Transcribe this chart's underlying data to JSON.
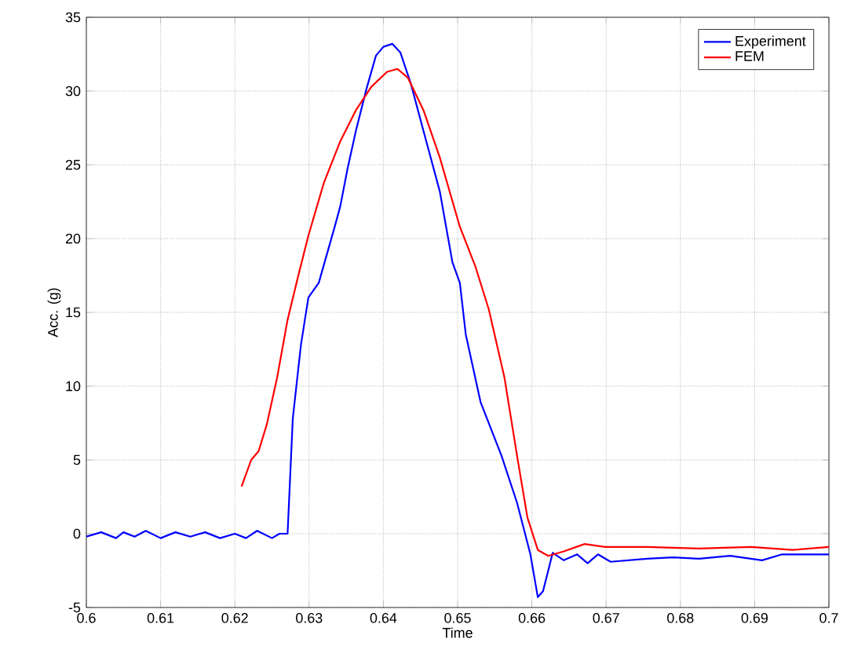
{
  "chart_data": {
    "type": "line",
    "xlabel": "Time",
    "ylabel": "Acc. (g)",
    "xlim": [
      0.6,
      0.7
    ],
    "ylim": [
      -5,
      35
    ],
    "xticks": [
      0.6,
      0.61,
      0.62,
      0.63,
      0.64,
      0.65,
      0.66,
      0.67,
      0.68,
      0.69,
      0.7
    ],
    "yticks": [
      -5,
      0,
      5,
      10,
      15,
      20,
      25,
      30,
      35
    ],
    "grid": true,
    "legend": "top right",
    "marker": "none",
    "line_style": "solid",
    "series": [
      {
        "name": "Experiment",
        "color": "#0000ff",
        "x": [
          0.6,
          0.602,
          0.604,
          0.605,
          0.6065,
          0.608,
          0.61,
          0.612,
          0.614,
          0.616,
          0.618,
          0.62,
          0.6215,
          0.623,
          0.625,
          0.626,
          0.6271,
          0.6278,
          0.6289,
          0.6299,
          0.6313,
          0.6335,
          0.6342,
          0.6352,
          0.6363,
          0.6377,
          0.639,
          0.64,
          0.6412,
          0.6423,
          0.6437,
          0.6454,
          0.6476,
          0.6493,
          0.6503,
          0.6511,
          0.6531,
          0.6559,
          0.658,
          0.6598,
          0.6608,
          0.6615,
          0.6628,
          0.6643,
          0.6661,
          0.6675,
          0.6689,
          0.6706,
          0.6755,
          0.679,
          0.6825,
          0.6867,
          0.691,
          0.6937,
          0.7
        ],
        "values": [
          -0.2,
          0.1,
          -0.3,
          0.1,
          -0.2,
          0.2,
          -0.3,
          0.1,
          -0.2,
          0.1,
          -0.3,
          0.0,
          -0.3,
          0.2,
          -0.3,
          0.0,
          0.0,
          7.8,
          12.8,
          16.0,
          17.0,
          20.9,
          22.2,
          24.8,
          27.3,
          30.1,
          32.4,
          33.0,
          33.2,
          32.6,
          30.5,
          27.3,
          23.2,
          18.4,
          17.0,
          13.5,
          8.9,
          5.3,
          2.1,
          -1.4,
          -4.3,
          -3.9,
          -1.3,
          -1.8,
          -1.4,
          -2.0,
          -1.4,
          -1.9,
          -1.7,
          -1.6,
          -1.7,
          -1.5,
          -1.8,
          -1.4,
          -1.4
        ]
      },
      {
        "name": "FEM",
        "color": "#ff0000",
        "x": [
          0.6209,
          0.6222,
          0.6232,
          0.6243,
          0.6257,
          0.6271,
          0.6285,
          0.6299,
          0.632,
          0.6342,
          0.6363,
          0.6384,
          0.6405,
          0.6419,
          0.6433,
          0.6454,
          0.6476,
          0.6503,
          0.6524,
          0.6542,
          0.6563,
          0.658,
          0.6594,
          0.6608,
          0.6622,
          0.6643,
          0.6671,
          0.6699,
          0.6755,
          0.6825,
          0.6895,
          0.6951,
          0.7
        ],
        "values": [
          3.2,
          5.0,
          5.6,
          7.4,
          10.6,
          14.5,
          17.4,
          20.2,
          23.8,
          26.6,
          28.7,
          30.3,
          31.3,
          31.5,
          30.9,
          28.7,
          25.5,
          20.8,
          18.1,
          15.2,
          10.6,
          5.3,
          1.1,
          -1.1,
          -1.5,
          -1.2,
          -0.7,
          -0.9,
          -0.9,
          -1.0,
          -0.9,
          -1.1,
          -0.9
        ]
      }
    ]
  }
}
